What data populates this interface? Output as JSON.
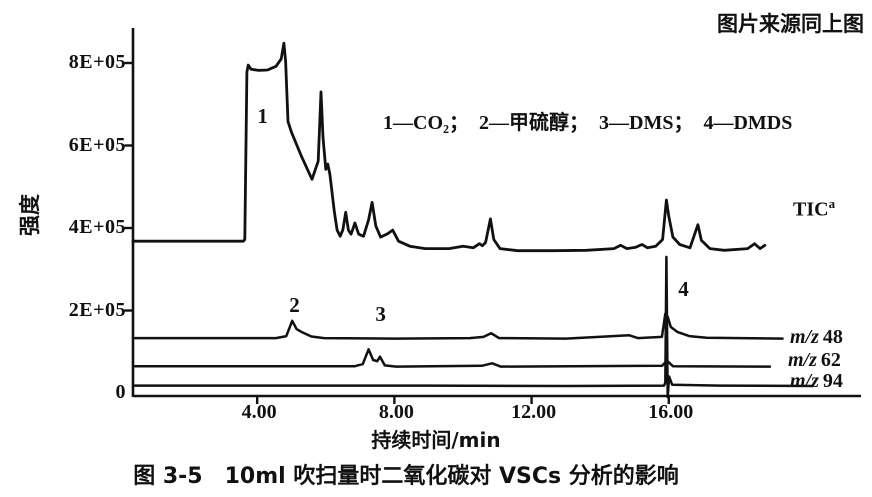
{
  "source_note": "图片来源同上图",
  "caption": "图 3-5　10ml 吹扫量时二氧化碳对 VSCs 分析的影响",
  "chart_data": {
    "type": "line",
    "title": "",
    "xlabel": "持续时间/min",
    "ylabel": "强度",
    "xlim": [
      0.38,
      21.6
    ],
    "ylim": [
      0,
      900000
    ],
    "grid": false,
    "y_unit": 100000,
    "x_ticks": [
      {
        "label": "4.00",
        "t": 4
      },
      {
        "label": "8.00",
        "t": 8
      },
      {
        "label": "12.00",
        "t": 12
      },
      {
        "label": "16.00",
        "t": 16
      }
    ],
    "y_ticks": [
      {
        "label": "8E+05",
        "v": 8
      },
      {
        "label": "6E+05",
        "v": 6
      },
      {
        "label": "4E+05",
        "v": 4
      },
      {
        "label": "2E+05",
        "v": 2
      },
      {
        "label": "0",
        "v": 0
      }
    ],
    "legend_items": [
      "1—CO₂；",
      "2—甲硫醇；",
      "3—DMS；",
      "4—DMDS"
    ],
    "peak_labels": [
      {
        "text": "1",
        "t": 4.18,
        "v": 6.68
      },
      {
        "text": "2",
        "t": 5.11,
        "v": 2.12
      },
      {
        "text": "3",
        "t": 7.62,
        "v": 1.88
      },
      {
        "text": "4",
        "t": 16.45,
        "v": 2.5
      }
    ],
    "series": [
      {
        "name": "TIC",
        "label": "TIC",
        "label_sup": "a",
        "points": [
          [
            0.38,
            3.68
          ],
          [
            3.6,
            3.68
          ],
          [
            3.64,
            3.72
          ],
          [
            3.7,
            7.78
          ],
          [
            3.74,
            7.95
          ],
          [
            3.82,
            7.85
          ],
          [
            4.05,
            7.82
          ],
          [
            4.3,
            7.83
          ],
          [
            4.55,
            7.92
          ],
          [
            4.7,
            8.1
          ],
          [
            4.78,
            8.48
          ],
          [
            4.83,
            8.05
          ],
          [
            4.9,
            6.58
          ],
          [
            5.0,
            6.32
          ],
          [
            5.3,
            5.72
          ],
          [
            5.6,
            5.18
          ],
          [
            5.78,
            5.62
          ],
          [
            5.86,
            7.3
          ],
          [
            5.92,
            6.2
          ],
          [
            6.0,
            5.42
          ],
          [
            6.06,
            5.55
          ],
          [
            6.12,
            5.3
          ],
          [
            6.25,
            4.4
          ],
          [
            6.33,
            3.95
          ],
          [
            6.42,
            3.8
          ],
          [
            6.5,
            3.96
          ],
          [
            6.58,
            4.38
          ],
          [
            6.66,
            3.95
          ],
          [
            6.74,
            3.85
          ],
          [
            6.85,
            4.12
          ],
          [
            6.96,
            3.85
          ],
          [
            7.1,
            3.8
          ],
          [
            7.25,
            4.2
          ],
          [
            7.35,
            4.62
          ],
          [
            7.46,
            4.05
          ],
          [
            7.6,
            3.78
          ],
          [
            7.8,
            3.86
          ],
          [
            7.95,
            3.95
          ],
          [
            8.12,
            3.68
          ],
          [
            8.45,
            3.56
          ],
          [
            8.9,
            3.5
          ],
          [
            9.6,
            3.5
          ],
          [
            10.0,
            3.56
          ],
          [
            10.3,
            3.52
          ],
          [
            10.48,
            3.62
          ],
          [
            10.57,
            3.57
          ],
          [
            10.66,
            3.65
          ],
          [
            10.8,
            4.22
          ],
          [
            10.9,
            3.72
          ],
          [
            11.08,
            3.5
          ],
          [
            11.6,
            3.45
          ],
          [
            12.6,
            3.45
          ],
          [
            13.6,
            3.46
          ],
          [
            14.4,
            3.5
          ],
          [
            14.6,
            3.58
          ],
          [
            14.78,
            3.5
          ],
          [
            15.02,
            3.53
          ],
          [
            15.22,
            3.6
          ],
          [
            15.38,
            3.52
          ],
          [
            15.62,
            3.56
          ],
          [
            15.82,
            3.72
          ],
          [
            15.93,
            4.68
          ],
          [
            16.0,
            4.28
          ],
          [
            16.12,
            3.78
          ],
          [
            16.32,
            3.6
          ],
          [
            16.62,
            3.52
          ],
          [
            16.85,
            4.08
          ],
          [
            16.95,
            3.7
          ],
          [
            17.2,
            3.5
          ],
          [
            17.62,
            3.46
          ],
          [
            18.3,
            3.5
          ],
          [
            18.5,
            3.62
          ],
          [
            18.66,
            3.5
          ],
          [
            18.8,
            3.58
          ]
        ]
      },
      {
        "name": "m/z 48",
        "label_prefix": "m/z",
        "label_value": "48",
        "points": [
          [
            0.38,
            1.33
          ],
          [
            4.55,
            1.33
          ],
          [
            4.85,
            1.38
          ],
          [
            5.02,
            1.75
          ],
          [
            5.15,
            1.55
          ],
          [
            5.32,
            1.47
          ],
          [
            5.58,
            1.37
          ],
          [
            5.95,
            1.33
          ],
          [
            8.0,
            1.32
          ],
          [
            10.2,
            1.33
          ],
          [
            10.6,
            1.36
          ],
          [
            10.82,
            1.45
          ],
          [
            11.05,
            1.33
          ],
          [
            13.0,
            1.32
          ],
          [
            14.85,
            1.4
          ],
          [
            15.1,
            1.33
          ],
          [
            15.8,
            1.36
          ],
          [
            15.9,
            1.92
          ],
          [
            15.97,
            1.85
          ],
          [
            16.06,
            1.6
          ],
          [
            16.25,
            1.48
          ],
          [
            16.6,
            1.38
          ],
          [
            17.1,
            1.34
          ],
          [
            19.32,
            1.32
          ]
        ]
      },
      {
        "name": "m/z 62",
        "label_prefix": "m/z",
        "label_value": "62",
        "points": [
          [
            0.38,
            0.65
          ],
          [
            6.85,
            0.65
          ],
          [
            7.08,
            0.7
          ],
          [
            7.25,
            1.06
          ],
          [
            7.38,
            0.8
          ],
          [
            7.5,
            0.77
          ],
          [
            7.58,
            0.88
          ],
          [
            7.72,
            0.67
          ],
          [
            8.05,
            0.64
          ],
          [
            10.55,
            0.66
          ],
          [
            10.85,
            0.72
          ],
          [
            11.1,
            0.64
          ],
          [
            15.8,
            0.66
          ],
          [
            15.95,
            0.78
          ],
          [
            16.12,
            0.65
          ],
          [
            18.95,
            0.64
          ]
        ]
      },
      {
        "name": "m/z 94",
        "label_prefix": "m/z",
        "label_value": "94",
        "points": [
          [
            0.38,
            0.18
          ],
          [
            9.0,
            0.18
          ],
          [
            13.0,
            0.17
          ],
          [
            15.86,
            0.18
          ],
          [
            15.9,
            0.25
          ],
          [
            15.93,
            3.3
          ],
          [
            15.97,
            -0.1
          ],
          [
            16.01,
            0.4
          ],
          [
            16.1,
            0.2
          ],
          [
            17.5,
            0.18
          ],
          [
            20.2,
            0.17
          ]
        ]
      }
    ]
  }
}
